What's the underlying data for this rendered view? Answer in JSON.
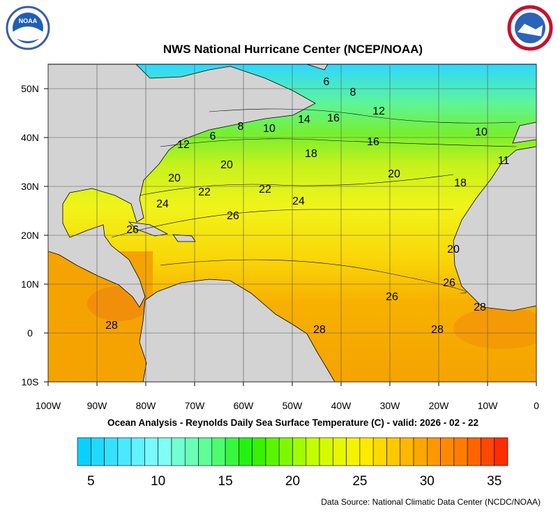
{
  "title": "NWS National Hurricane Center (NCEP/NOAA)",
  "subtitle": "Ocean Analysis - Reynolds Daily Sea Surface Temperature (C) - valid: 2026 - 02 - 22",
  "source": "Data Source: National Climatic Data Center (NCDC/NOAA)",
  "logo": "NOAA",
  "map": {
    "xlim": [
      -100,
      0
    ],
    "ylim": [
      -10,
      55
    ],
    "xticks": [
      {
        "value": -100,
        "label": "100W"
      },
      {
        "value": -90,
        "label": "90W"
      },
      {
        "value": -80,
        "label": "80W"
      },
      {
        "value": -70,
        "label": "70W"
      },
      {
        "value": -60,
        "label": "60W"
      },
      {
        "value": -50,
        "label": "50W"
      },
      {
        "value": -40,
        "label": "40W"
      },
      {
        "value": -30,
        "label": "30W"
      },
      {
        "value": -20,
        "label": "20W"
      },
      {
        "value": -10,
        "label": "10W"
      },
      0
    ],
    "yticks": [
      {
        "value": -10,
        "label": "10S"
      },
      0,
      {
        "value": 10,
        "label": "10N"
      },
      {
        "value": 20,
        "label": "20N"
      },
      {
        "value": 30,
        "label": "30N"
      },
      {
        "value": 40,
        "label": "40N"
      },
      {
        "value": 50,
        "label": "50N"
      }
    ],
    "grid": true,
    "contour_labels": [
      6,
      8,
      12,
      16,
      10,
      14,
      6,
      8,
      10,
      12,
      18,
      16,
      20,
      20,
      22,
      22,
      24,
      24,
      26,
      26,
      20,
      18,
      11,
      20,
      26,
      26,
      28,
      28,
      28,
      28
    ]
  },
  "colorbar": {
    "lim": [
      4,
      36
    ],
    "ticks": [
      5,
      10,
      15,
      20,
      25,
      30,
      35
    ]
  }
}
